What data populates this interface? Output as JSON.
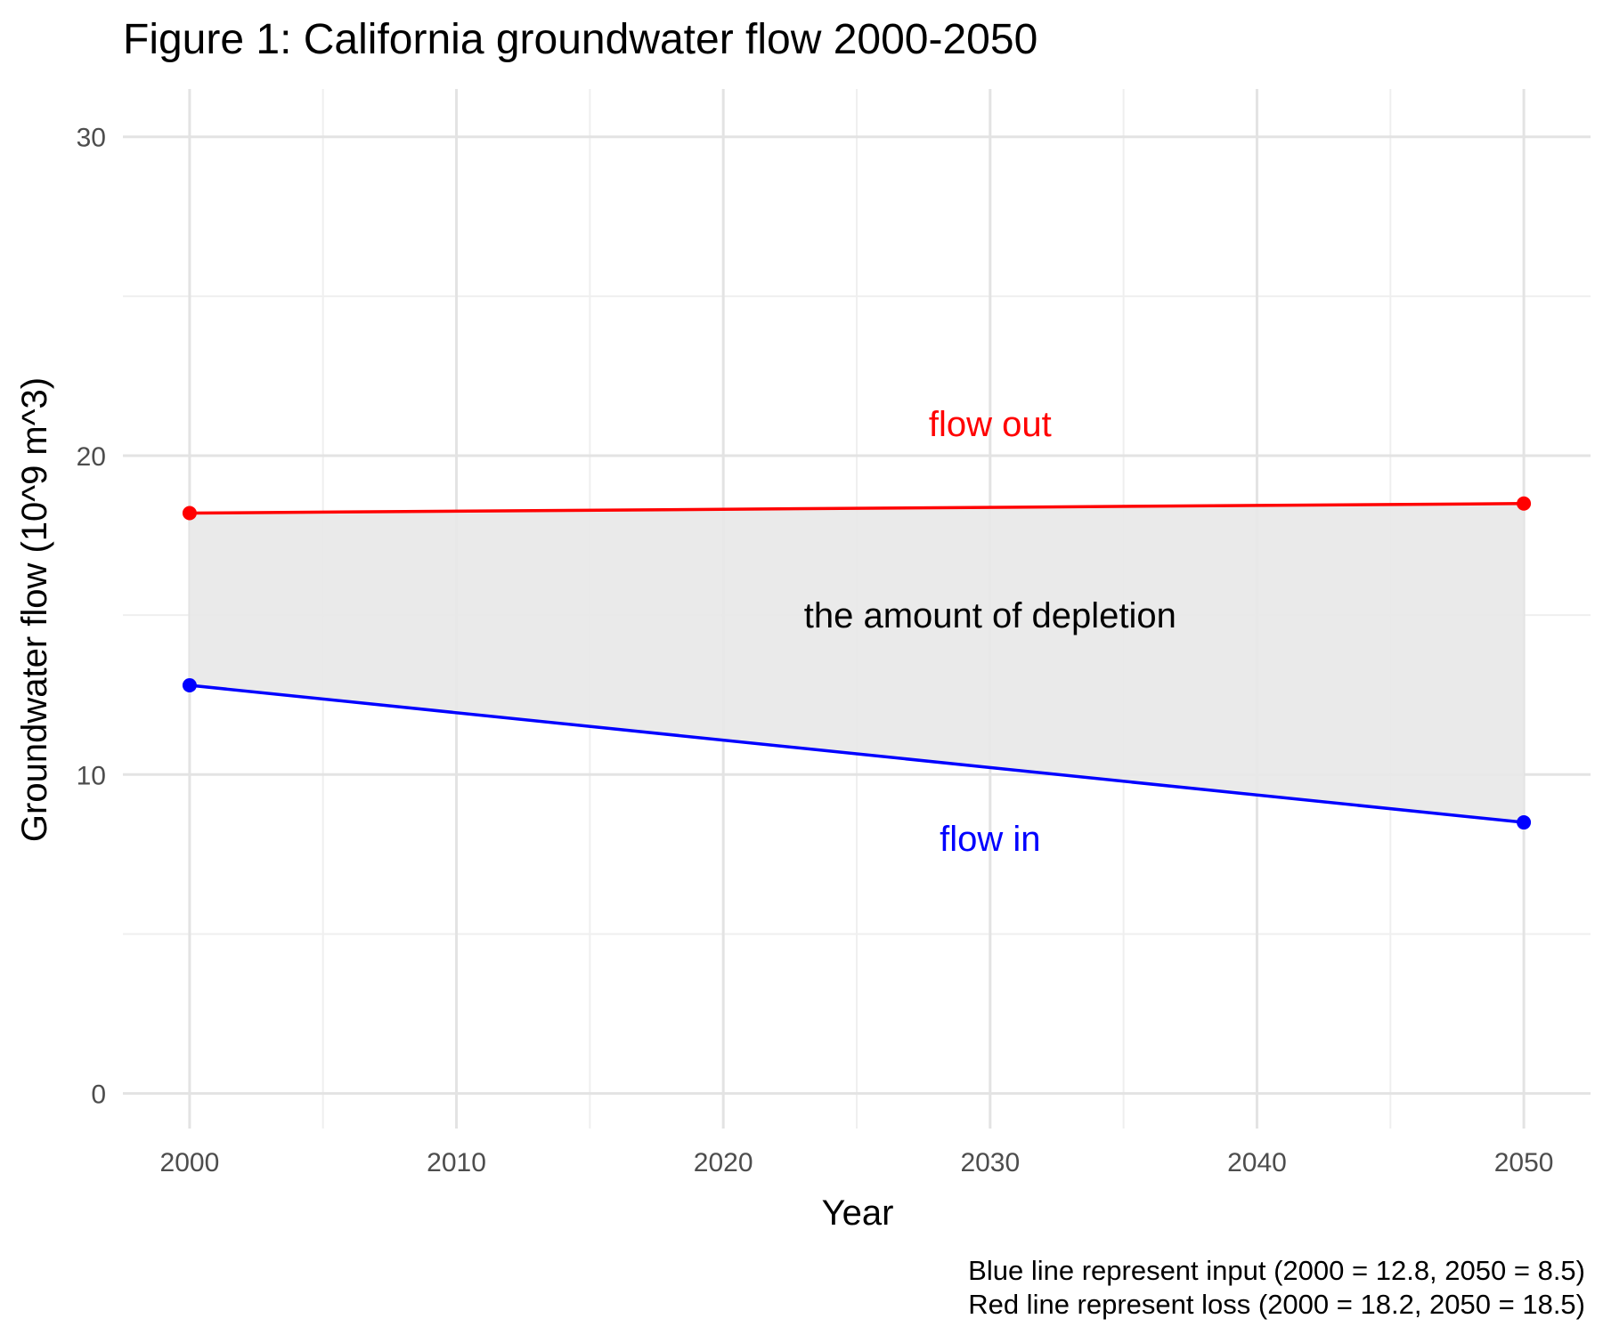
{
  "chart_data": {
    "type": "line",
    "title": "Figure 1: California groundwater flow 2000-2050",
    "xlabel": "Year",
    "ylabel": "Groundwater flow (10^9 m^3)",
    "x": [
      2000,
      2050
    ],
    "xlim": [
      1997.5,
      2052.5
    ],
    "ylim": [
      -1.1,
      31.5
    ],
    "x_ticks": [
      2000,
      2010,
      2020,
      2030,
      2040,
      2050
    ],
    "x_tick_labels": [
      "2000",
      "2010",
      "2020",
      "2030",
      "2040",
      "2050"
    ],
    "y_ticks": [
      0,
      10,
      20,
      30
    ],
    "y_tick_labels": [
      "0",
      "10",
      "20",
      "30"
    ],
    "grid": true,
    "series": [
      {
        "key": "flow-out",
        "values": [
          18.2,
          18.5
        ],
        "color": "#ff0000"
      },
      {
        "key": "flow-in",
        "values": [
          12.8,
          8.5
        ],
        "color": "#0000ff"
      }
    ],
    "ribbon": {
      "between": [
        "flow-in",
        "flow-out"
      ],
      "color": "#e8e8e8"
    },
    "annotations": [
      {
        "key": "flow-out",
        "text": "flow out",
        "x": 2030,
        "y": 21,
        "color": "#ff0000"
      },
      {
        "key": "depletion",
        "text": "the amount of depletion",
        "x": 2030,
        "y": 15,
        "color": "#000000"
      },
      {
        "key": "flow-in",
        "text": "flow in",
        "x": 2030,
        "y": 8,
        "color": "#0000ff"
      }
    ],
    "caption": [
      "Blue line represent input (2000 = 12.8, 2050 = 8.5)",
      "Red line represent loss (2000 = 18.2, 2050 = 18.5)"
    ]
  }
}
